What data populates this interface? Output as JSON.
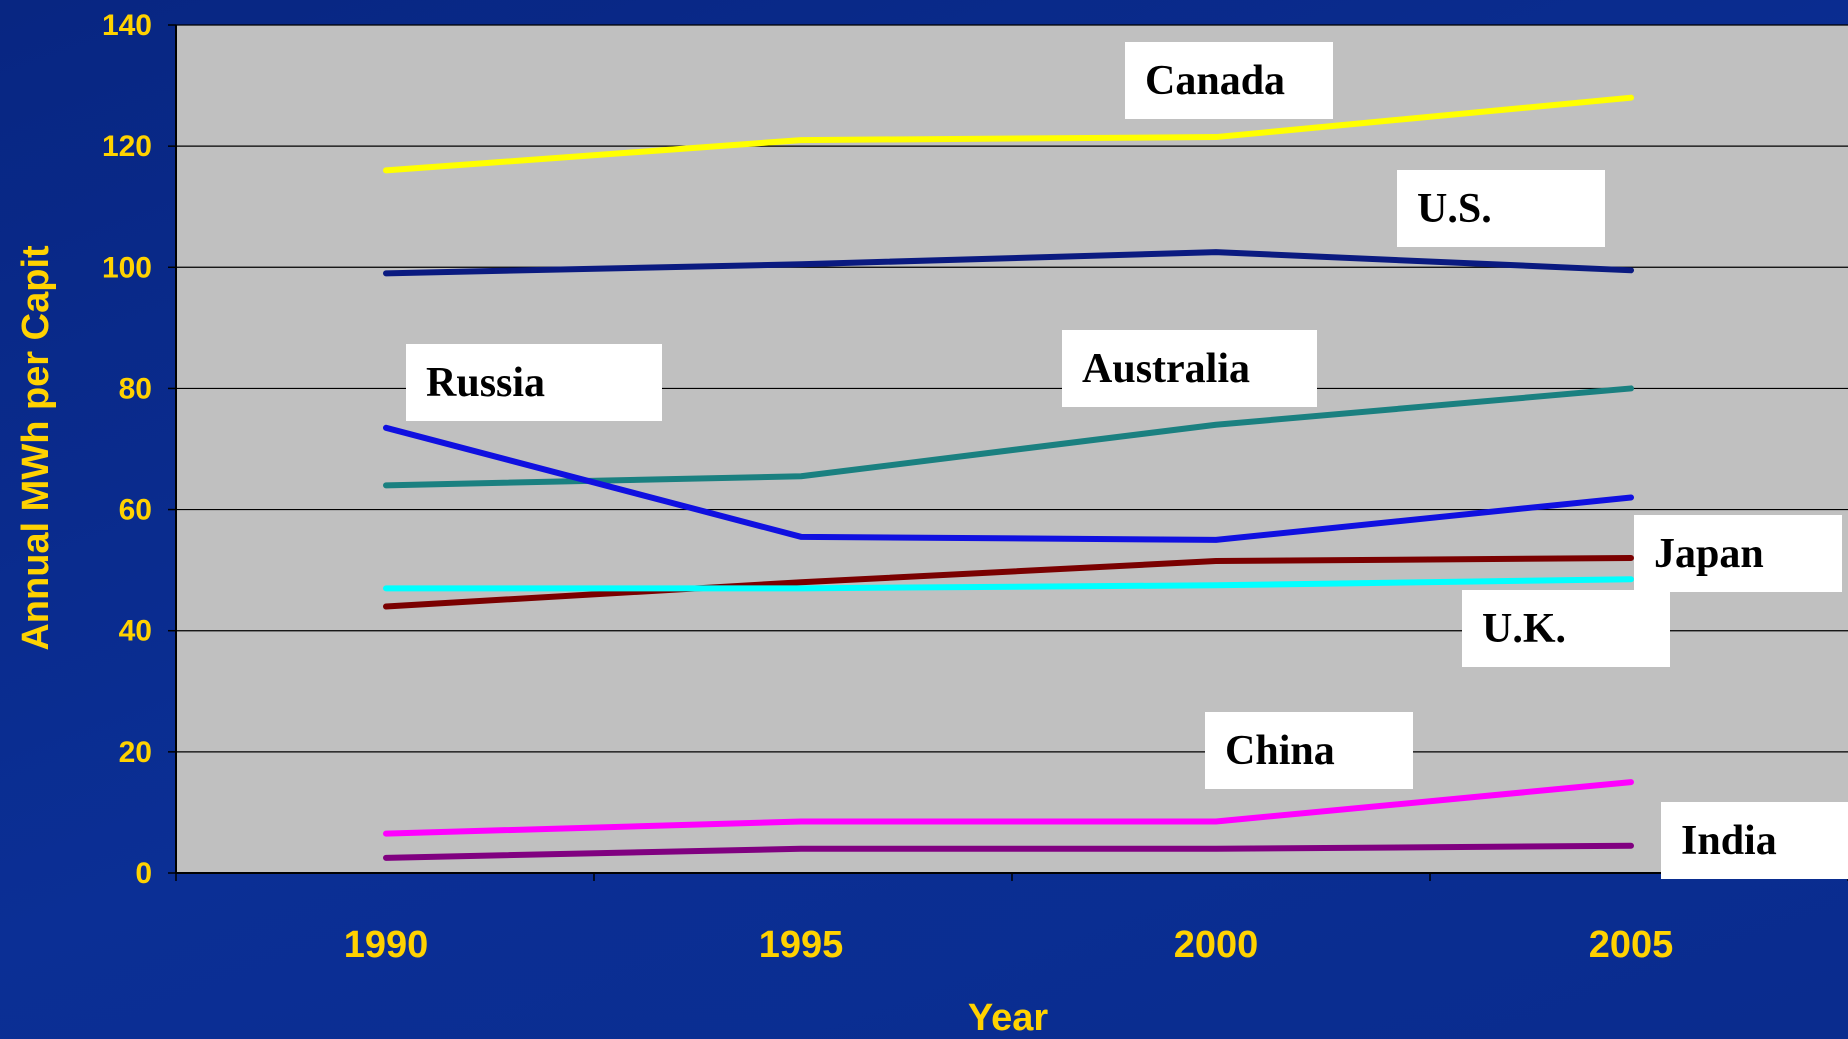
{
  "chart_data": {
    "type": "line",
    "title": "",
    "xlabel": "Year",
    "ylabel": "Annual MWh per Capit",
    "x": [
      "1990",
      "1995",
      "2000",
      "2005"
    ],
    "ylim": [
      0,
      140
    ],
    "yticks": [
      "0",
      "20",
      "40",
      "60",
      "80",
      "100",
      "120",
      "140"
    ],
    "grid": "horizontal",
    "plot_background": "#c0c0c0",
    "series": [
      {
        "name": "Canada",
        "color": "#ffff00",
        "values": [
          116,
          121,
          121.5,
          128
        ]
      },
      {
        "name": "U.S.",
        "color": "#0a1a80",
        "values": [
          99,
          100.5,
          102.5,
          99.5
        ]
      },
      {
        "name": "Australia",
        "color": "#1a8080",
        "values": [
          64,
          65.5,
          74,
          80
        ]
      },
      {
        "name": "Russia",
        "color": "#1010e0",
        "values": [
          73.5,
          55.5,
          55,
          62
        ]
      },
      {
        "name": "Japan",
        "color": "#7a0000",
        "values": [
          44,
          48,
          51.5,
          52
        ]
      },
      {
        "name": "U.K.",
        "color": "#00ffff",
        "values": [
          47,
          47,
          47.5,
          48.5
        ]
      },
      {
        "name": "China",
        "color": "#ff00ff",
        "values": [
          6.5,
          8.5,
          8.5,
          15
        ]
      },
      {
        "name": "India",
        "color": "#800080",
        "values": [
          2.5,
          4,
          4,
          4.5
        ]
      }
    ]
  }
}
